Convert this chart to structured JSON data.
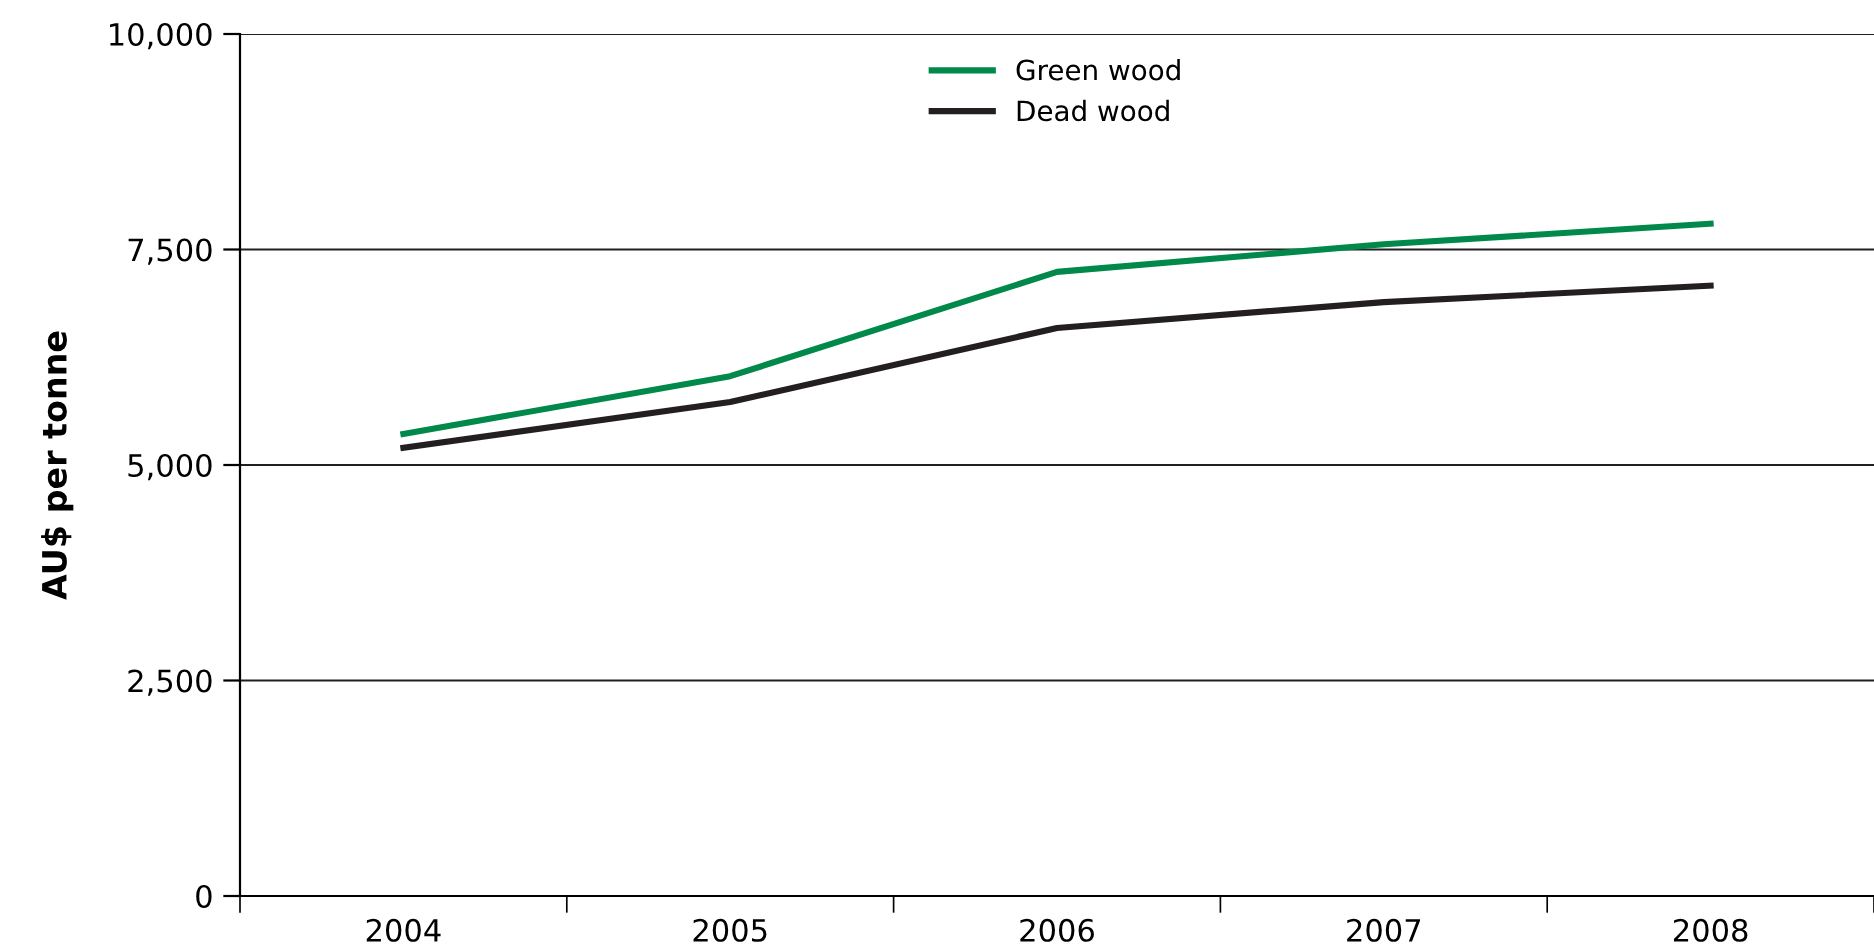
{
  "chart_data": {
    "type": "line",
    "ylabel": "AU$ per tonne",
    "categories": [
      "2004",
      "2005",
      "2006",
      "2007",
      "2008"
    ],
    "series": [
      {
        "name": "Green wood",
        "color": "#00894a",
        "values": [
          5360,
          6030,
          7240,
          7560,
          7800
        ]
      },
      {
        "name": "Dead wood",
        "color": "#231f20",
        "values": [
          5200,
          5730,
          6590,
          6890,
          7080
        ]
      }
    ],
    "ylim": [
      0,
      10000
    ],
    "yticks": [
      {
        "value": 0,
        "label": "0"
      },
      {
        "value": 2500,
        "label": "2,500"
      },
      {
        "value": 5000,
        "label": "5,000"
      },
      {
        "value": 7500,
        "label": "7,500"
      },
      {
        "value": 10000,
        "label": "10,000"
      }
    ],
    "grid": "y",
    "legend": "top",
    "marker": "none",
    "line_style": "solid"
  }
}
